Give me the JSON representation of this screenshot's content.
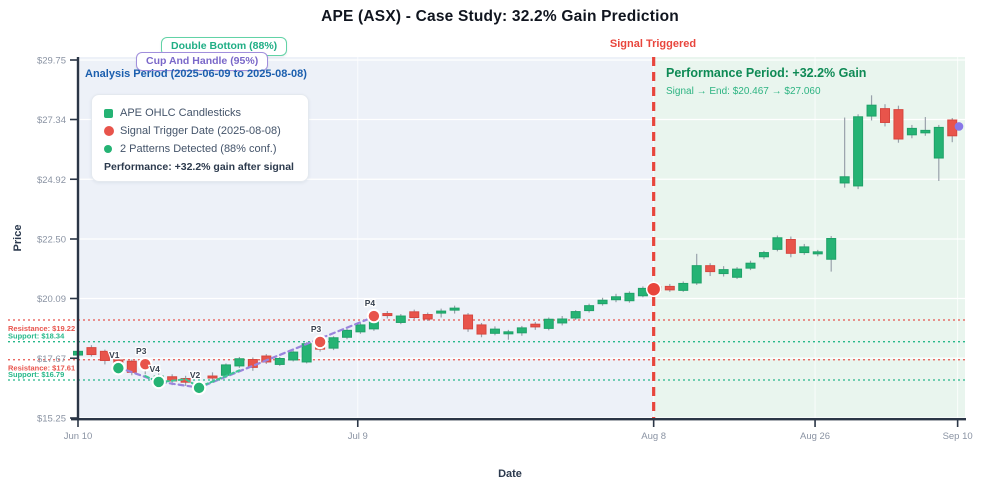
{
  "header": {
    "title": "APE (ASX) - Case Study: 32.2% Gain Prediction"
  },
  "annotations": {
    "double_bottom": {
      "label": "Double Bottom (88%)",
      "border_color": "#62d3a6",
      "text_color": "#1fae85"
    },
    "cup_handle": {
      "label": "Cup And Handle (95%)",
      "border_color": "#a18fdc",
      "text_color": "#7a68c9"
    },
    "analysis_period": {
      "label": "Analysis Period (2025-06-09 to 2025-08-08)",
      "text_color": "#1b5fae"
    },
    "signal_triggered": {
      "label": "Signal Triggered",
      "text_color": "#e8453c"
    },
    "performance_period": {
      "label": "Performance Period: +32.2% Gain",
      "text_color": "#0e8a55"
    },
    "signal_to_end": {
      "label": "Signal → End: $20.467 → $27.060",
      "text_color": "#2db482"
    }
  },
  "legend": {
    "items": [
      {
        "marker": "square",
        "color": "#25b374",
        "label": "APE OHLC Candlesticks"
      },
      {
        "marker": "circle",
        "color": "#e8544b",
        "label": "Signal Trigger Date (2025-08-08)"
      },
      {
        "marker": "dot",
        "color": "#25b374",
        "label": "2 Patterns Detected (88% conf.)"
      }
    ],
    "footer": "Performance: +32.2% gain after signal"
  },
  "chart_data": {
    "type": "candlestick",
    "title": "APE (ASX) - Case Study: 32.2% Gain Prediction",
    "xlabel": "Date",
    "ylabel": "Price",
    "ylim": [
      15.25,
      29.75
    ],
    "y_ticks": [
      {
        "label": "$15.25",
        "value": 15.25
      },
      {
        "label": "$17.67",
        "value": 17.67
      },
      {
        "label": "$20.09",
        "value": 20.09
      },
      {
        "label": "$22.50",
        "value": 22.5
      },
      {
        "label": "$24.92",
        "value": 24.92
      },
      {
        "label": "$27.34",
        "value": 27.34
      },
      {
        "label": "$29.75",
        "value": 29.75
      }
    ],
    "x_ticks": [
      {
        "label": "Jun 10",
        "i": 0
      },
      {
        "label": "Jul 9",
        "i": 20.8
      },
      {
        "label": "Aug 8",
        "i": 42.8
      },
      {
        "label": "Aug 26",
        "i": 54.8
      },
      {
        "label": "Sep 10",
        "i": 65.4
      }
    ],
    "up_color": "#25b374",
    "up_stroke": "#1ea168",
    "down_color": "#e8544b",
    "down_stroke": "#d6463f",
    "wick_color": "#99a1ab",
    "analysis_bg": "#edf1f8",
    "performance_bg": "#e9f5ee",
    "candles": [
      [
        17.8,
        18.02,
        17.7,
        17.95
      ],
      [
        18.1,
        18.2,
        17.74,
        17.82
      ],
      [
        17.95,
        18.02,
        17.42,
        17.58
      ],
      [
        17.6,
        17.72,
        17.18,
        17.36
      ],
      [
        17.55,
        17.62,
        16.98,
        17.1
      ],
      [
        17.45,
        17.52,
        17.02,
        17.28
      ],
      [
        16.65,
        17.06,
        16.52,
        16.95
      ],
      [
        16.92,
        17.02,
        16.58,
        16.75
      ],
      [
        16.85,
        16.96,
        16.55,
        16.7
      ],
      [
        16.45,
        16.74,
        16.32,
        16.65
      ],
      [
        16.95,
        17.1,
        16.72,
        16.88
      ],
      [
        16.98,
        17.46,
        16.9,
        17.4
      ],
      [
        17.36,
        17.72,
        17.28,
        17.65
      ],
      [
        17.62,
        17.7,
        17.16,
        17.3
      ],
      [
        17.76,
        17.84,
        17.44,
        17.52
      ],
      [
        17.42,
        17.72,
        17.36,
        17.66
      ],
      [
        17.6,
        17.98,
        17.54,
        17.92
      ],
      [
        17.52,
        18.32,
        17.46,
        18.26
      ],
      [
        18.12,
        18.36,
        17.94,
        18.04
      ],
      [
        18.08,
        18.56,
        18.0,
        18.5
      ],
      [
        18.52,
        18.86,
        18.44,
        18.8
      ],
      [
        18.74,
        19.1,
        18.66,
        19.02
      ],
      [
        18.86,
        19.4,
        18.78,
        19.32
      ],
      [
        19.48,
        19.58,
        19.28,
        19.4
      ],
      [
        19.12,
        19.46,
        19.05,
        19.38
      ],
      [
        19.55,
        19.64,
        19.26,
        19.32
      ],
      [
        19.44,
        19.52,
        19.18,
        19.26
      ],
      [
        19.5,
        19.68,
        19.32,
        19.58
      ],
      [
        19.62,
        19.8,
        19.48,
        19.7
      ],
      [
        19.42,
        19.5,
        18.74,
        18.86
      ],
      [
        19.02,
        19.1,
        18.52,
        18.65
      ],
      [
        18.68,
        18.96,
        18.6,
        18.85
      ],
      [
        18.66,
        18.82,
        18.42,
        18.74
      ],
      [
        18.7,
        18.98,
        18.58,
        18.9
      ],
      [
        19.05,
        19.14,
        18.82,
        18.94
      ],
      [
        18.88,
        19.32,
        18.8,
        19.25
      ],
      [
        19.1,
        19.38,
        19.0,
        19.26
      ],
      [
        19.3,
        19.62,
        19.22,
        19.56
      ],
      [
        19.6,
        19.88,
        19.52,
        19.8
      ],
      [
        19.88,
        20.12,
        19.8,
        20.02
      ],
      [
        20.04,
        20.28,
        19.94,
        20.16
      ],
      [
        20.0,
        20.38,
        19.92,
        20.3
      ],
      [
        20.2,
        20.58,
        20.14,
        20.5
      ],
      [
        20.56,
        20.7,
        20.34,
        20.42
      ],
      [
        20.58,
        20.68,
        20.36,
        20.44
      ],
      [
        20.42,
        20.78,
        20.36,
        20.7
      ],
      [
        20.72,
        21.9,
        20.64,
        21.42
      ],
      [
        21.42,
        21.52,
        21.0,
        21.18
      ],
      [
        21.1,
        21.4,
        20.98,
        21.26
      ],
      [
        20.95,
        21.36,
        20.88,
        21.28
      ],
      [
        21.32,
        21.62,
        21.24,
        21.52
      ],
      [
        21.78,
        22.02,
        21.68,
        21.95
      ],
      [
        22.08,
        22.64,
        22.0,
        22.55
      ],
      [
        22.48,
        22.6,
        21.76,
        21.92
      ],
      [
        21.95,
        22.3,
        21.86,
        22.18
      ],
      [
        21.9,
        22.06,
        21.8,
        21.98
      ],
      [
        21.68,
        22.62,
        21.18,
        22.52
      ],
      [
        24.77,
        27.42,
        24.58,
        25.02
      ],
      [
        24.65,
        27.55,
        24.52,
        27.45
      ],
      [
        27.48,
        28.32,
        27.3,
        27.92
      ],
      [
        27.78,
        27.96,
        27.06,
        27.22
      ],
      [
        27.74,
        27.9,
        26.4,
        26.55
      ],
      [
        26.72,
        27.12,
        26.58,
        26.98
      ],
      [
        26.8,
        27.44,
        26.68,
        26.9
      ],
      [
        25.78,
        27.12,
        24.85,
        27.02
      ],
      [
        27.32,
        27.4,
        26.42,
        26.68
      ]
    ],
    "support_resistance": [
      {
        "kind": "resistance",
        "label": "Resistance: $19.22",
        "value": 19.22,
        "color": "#e8554e"
      },
      {
        "kind": "support",
        "label": "Support: $18.34",
        "value": 18.34,
        "color": "#27b88a"
      },
      {
        "kind": "resistance",
        "label": "Resistance: $17.61",
        "value": 17.61,
        "color": "#e8554e"
      },
      {
        "kind": "support",
        "label": "Support: $16.79",
        "value": 16.79,
        "color": "#27b88a"
      }
    ],
    "signal": {
      "line_i": 42.8,
      "price": 20.467,
      "color": "#e8453c"
    },
    "end_marker": {
      "i": 65.5,
      "price": 27.06,
      "color": "#8878e8"
    },
    "pattern_points": [
      {
        "label": "V1",
        "i": 3,
        "p": 17.27,
        "kind": "valley"
      },
      {
        "label": "P3",
        "i": 5,
        "p": 17.43,
        "kind": "peak"
      },
      {
        "label": "V4",
        "i": 6,
        "p": 16.71,
        "kind": "valley"
      },
      {
        "label": "V2",
        "i": 9,
        "p": 16.47,
        "kind": "valley"
      },
      {
        "label": "P3",
        "i": 18,
        "p": 18.33,
        "kind": "peak"
      },
      {
        "label": "P4",
        "i": 22,
        "p": 19.38,
        "kind": "peak"
      }
    ],
    "pattern_overlays": [
      {
        "name": "cup-and-handle",
        "color": "#9b84dc",
        "dash": "5 4",
        "width": 2.2,
        "points": [
          [
            3,
            17.3
          ],
          [
            6,
            16.72
          ],
          [
            9,
            16.48
          ],
          [
            22,
            19.35
          ]
        ]
      },
      {
        "name": "double-bottom",
        "color": "#3cc795",
        "dash": "4 3",
        "width": 2,
        "points": [
          [
            5,
            16.95
          ],
          [
            6,
            16.7
          ],
          [
            8,
            16.82
          ],
          [
            9,
            16.5
          ],
          [
            12,
            17.18
          ]
        ]
      }
    ]
  },
  "axes_titles": {
    "y": "Price",
    "x": "Date"
  }
}
